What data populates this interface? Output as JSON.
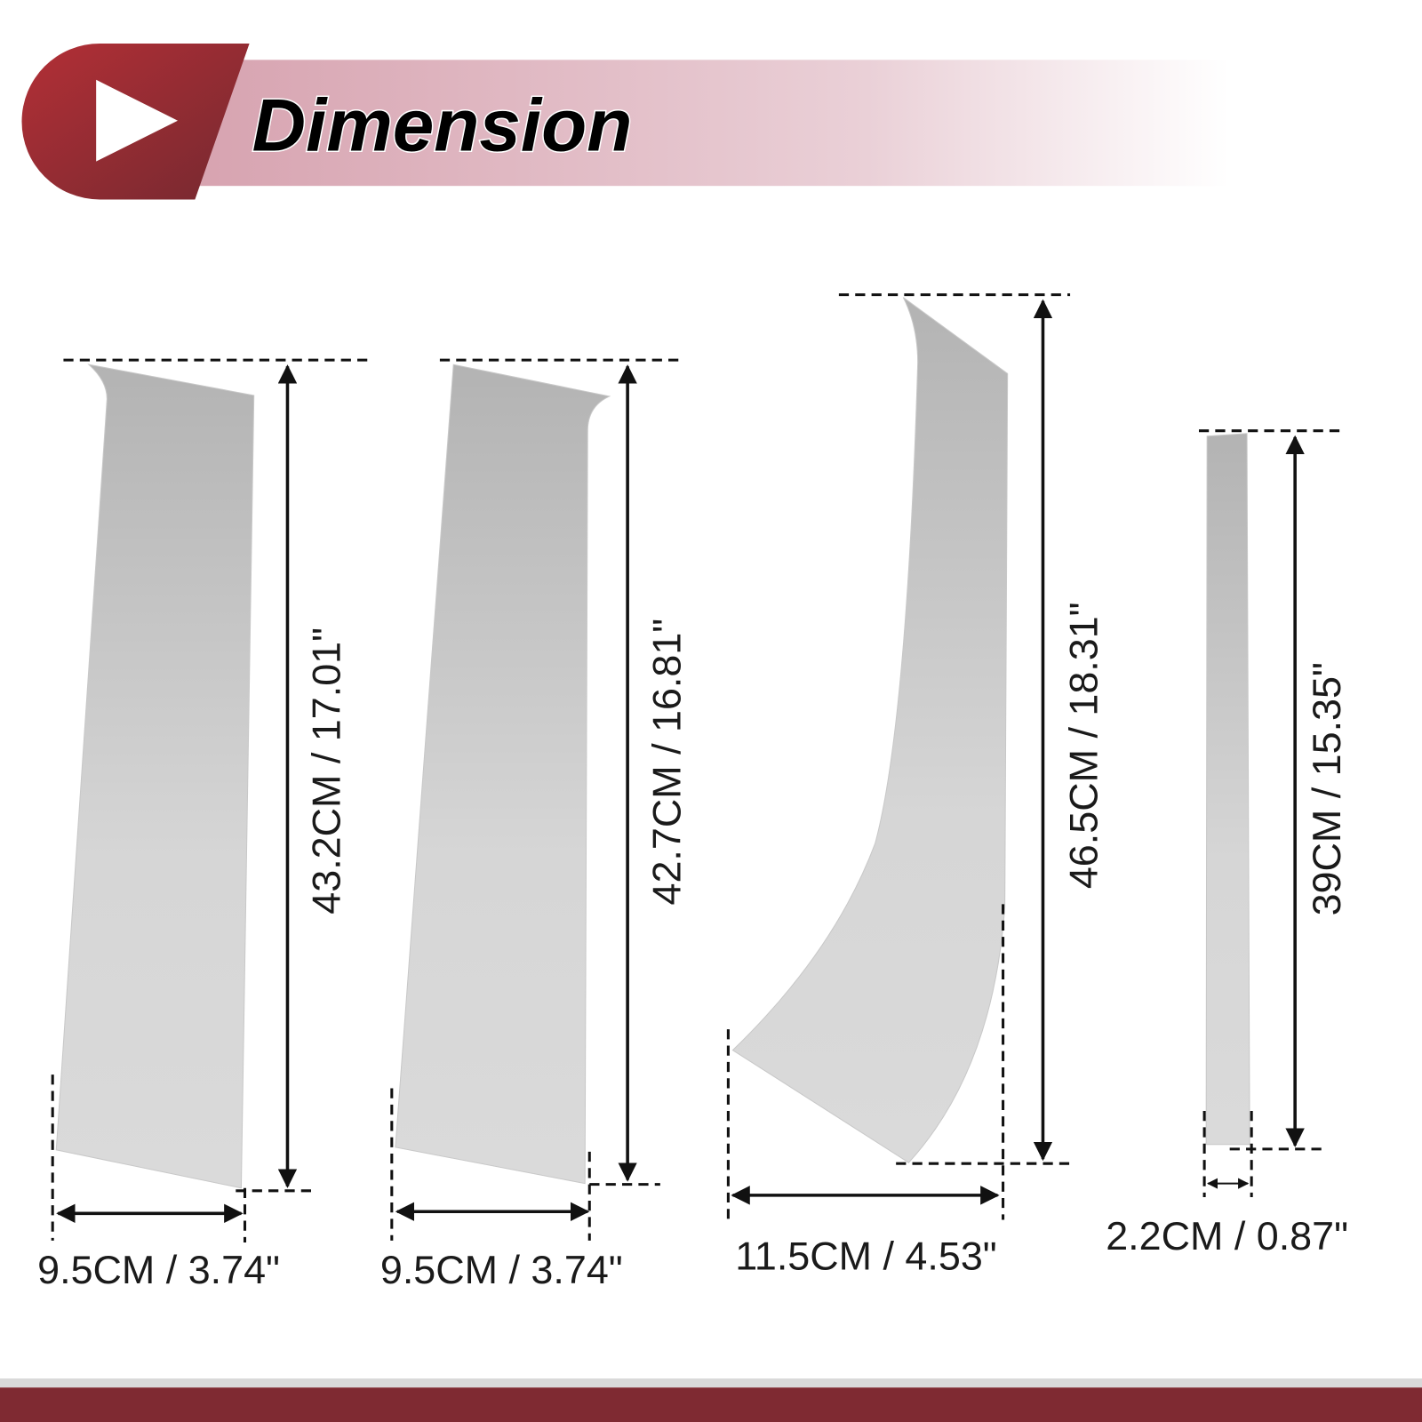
{
  "header": {
    "title": "Dimension"
  },
  "pieces": [
    {
      "height_label": "43.2CM / 17.01\"",
      "width_label": "9.5CM / 3.74\""
    },
    {
      "height_label": "42.7CM / 16.81\"",
      "width_label": "9.5CM / 3.74\""
    },
    {
      "height_label": "46.5CM / 18.31\"",
      "width_label": "11.5CM / 4.53\""
    },
    {
      "height_label": "39CM / 15.35\"",
      "width_label": "2.2CM / 0.87\""
    }
  ]
}
